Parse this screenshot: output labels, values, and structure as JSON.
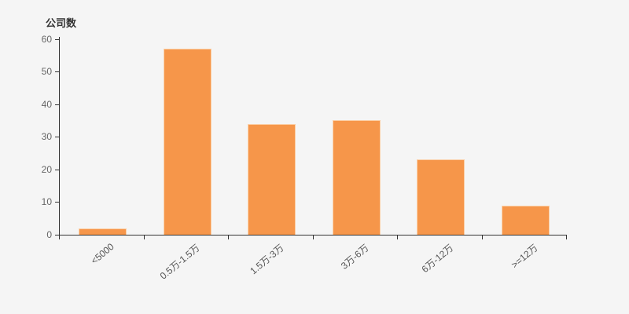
{
  "chart_data": {
    "type": "bar",
    "title": "公司数",
    "ylabel": "公司数",
    "xlabel": "",
    "categories": [
      "<5000",
      "0.5万-1.5万",
      "1.5万-3万",
      "3万-6万",
      "6万-12万",
      ">=12万"
    ],
    "values": [
      2,
      57,
      34,
      35,
      23,
      9
    ],
    "ylim": [
      0,
      60
    ],
    "yticks": [
      0,
      10,
      20,
      30,
      40,
      50,
      60
    ],
    "grid": false,
    "legend_position": "none",
    "bar_color": "#f6964a",
    "bar_border_color": "#fbd0a8",
    "background_color": "#f5f5f5",
    "axis_color": "#333333",
    "ytick_label_color": "#666666",
    "xtick_label_color": "#555555",
    "title_color": "#333333",
    "xlabel_rotation_deg": -40
  }
}
